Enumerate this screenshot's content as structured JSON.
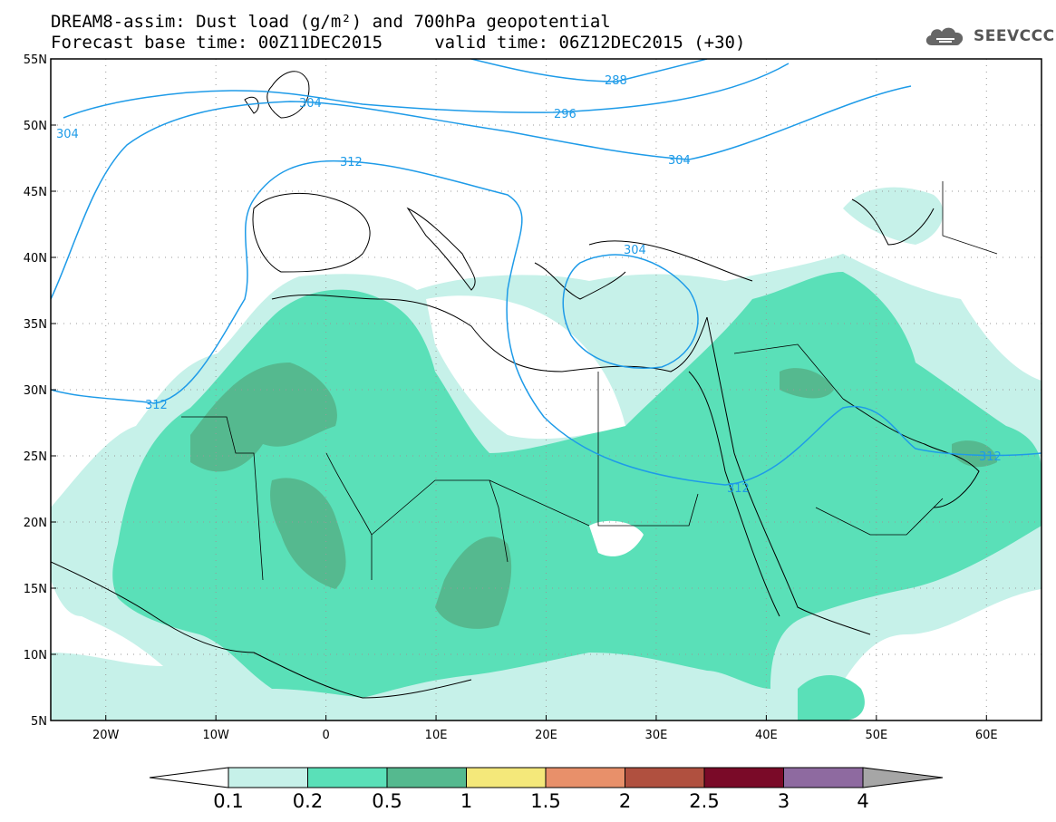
{
  "title": {
    "line1": "DREAM8-assim: Dust load (g/m²) and 700hPa geopotential",
    "line2": "Forecast base time: 00Z11DEC2015     valid time: 06Z12DEC2015 (+30)"
  },
  "logo": {
    "text": "SEEVCCC",
    "icon": "cloud-logo-icon"
  },
  "map": {
    "lon_range": [
      -25,
      65
    ],
    "lat_range": [
      5,
      55
    ],
    "lat_labels": [
      "55N",
      "50N",
      "45N",
      "40N",
      "35N",
      "30N",
      "25N",
      "20N",
      "15N",
      "10N",
      "5N"
    ],
    "lon_labels": [
      "20W",
      "10W",
      "0",
      "10E",
      "20E",
      "30E",
      "40E",
      "50E",
      "60E"
    ],
    "grid": true,
    "contour_color": "#1e9be8",
    "contour_labels": [
      "288",
      "296",
      "304",
      "312",
      "296",
      "304",
      "312",
      "304",
      "312",
      "312"
    ]
  },
  "legend": {
    "colors": [
      "#ffffff",
      "#c6f1e9",
      "#5ae0b8",
      "#55b98f",
      "#f4e87a",
      "#e8906a",
      "#b0503f",
      "#7a0a28",
      "#8e6aa0",
      "#a6a6a6"
    ],
    "labels": [
      "0.1",
      "0.2",
      "0.5",
      "1",
      "1.5",
      "2",
      "2.5",
      "3",
      "4"
    ]
  }
}
